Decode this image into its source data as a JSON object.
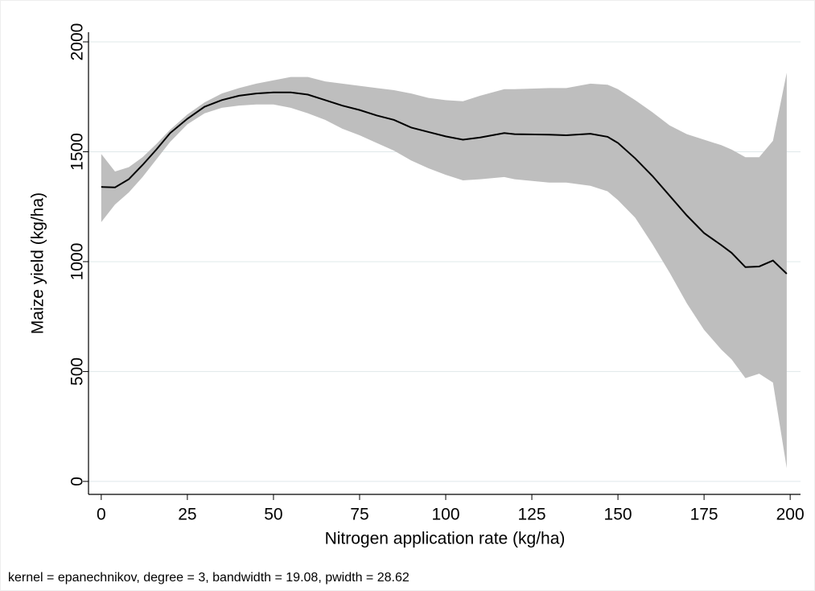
{
  "chart_data": {
    "type": "line",
    "x": [
      0,
      4,
      8,
      12,
      16,
      20,
      25,
      30,
      35,
      40,
      45,
      50,
      55,
      60,
      65,
      70,
      75,
      80,
      85,
      90,
      95,
      100,
      105,
      110,
      117,
      120,
      130,
      135,
      142,
      147,
      150,
      155,
      160,
      165,
      170,
      175,
      180,
      183,
      187,
      191,
      195,
      199
    ],
    "values": [
      1340,
      1338,
      1375,
      1440,
      1510,
      1585,
      1650,
      1705,
      1735,
      1755,
      1765,
      1770,
      1770,
      1760,
      1735,
      1710,
      1690,
      1665,
      1645,
      1610,
      1590,
      1570,
      1555,
      1565,
      1585,
      1580,
      1578,
      1575,
      1582,
      1568,
      1540,
      1470,
      1390,
      1300,
      1210,
      1130,
      1075,
      1040,
      975,
      978,
      1005,
      945
    ],
    "color": "#000000",
    "band": {
      "upper": [
        1490,
        1410,
        1430,
        1475,
        1535,
        1600,
        1670,
        1725,
        1765,
        1790,
        1810,
        1825,
        1840,
        1840,
        1820,
        1810,
        1800,
        1790,
        1780,
        1765,
        1745,
        1735,
        1730,
        1755,
        1785,
        1785,
        1790,
        1790,
        1810,
        1805,
        1785,
        1735,
        1680,
        1620,
        1580,
        1555,
        1530,
        1510,
        1475,
        1475,
        1550,
        1860
      ],
      "lower": [
        1180,
        1260,
        1315,
        1385,
        1465,
        1545,
        1625,
        1675,
        1700,
        1710,
        1715,
        1715,
        1700,
        1675,
        1645,
        1605,
        1575,
        1540,
        1505,
        1460,
        1425,
        1395,
        1370,
        1375,
        1385,
        1375,
        1360,
        1360,
        1345,
        1320,
        1280,
        1200,
        1080,
        950,
        810,
        690,
        600,
        555,
        470,
        490,
        450,
        60
      ],
      "color": "#bebebe"
    },
    "xlabel": "Nitrogen application rate (kg/ha)",
    "ylabel": "Maize yield (kg/ha)",
    "note": "kernel = epanechnikov, degree = 3, bandwidth = 19.08, pwidth = 28.62",
    "xlim": [
      -3.7,
      203
    ],
    "ylim": [
      -59,
      2044
    ],
    "xticks": [
      0,
      25,
      50,
      75,
      100,
      125,
      150,
      175,
      200
    ],
    "yticks": [
      0,
      500,
      1000,
      1500,
      2000
    ],
    "grid": true,
    "grid_color": "#dfe8ea"
  }
}
